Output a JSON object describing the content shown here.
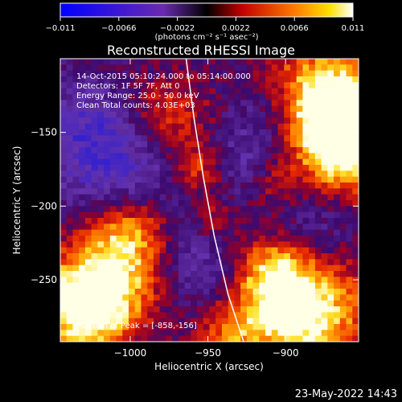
{
  "chart_data": {
    "type": "heatmap",
    "title": "Reconstructed RHESSI Image",
    "xlabel": "Heliocentric X (arcsec)",
    "ylabel": "Heliocentric Y (arcsec)",
    "xlim": [
      -1045,
      -853
    ],
    "ylim": [
      -292,
      -100
    ],
    "x_ticks": [
      -1000,
      -950,
      -900
    ],
    "y_ticks": [
      -150,
      -200,
      -250
    ],
    "x_tick_labels": [
      "−1000",
      "−950",
      "−900"
    ],
    "y_tick_labels": [
      "−150",
      "−200",
      "−250"
    ],
    "colorbar": {
      "range": [
        -0.011,
        0.011
      ],
      "ticks": [
        -0.011,
        -0.0066,
        -0.0022,
        0.0022,
        0.0066,
        0.011
      ],
      "tick_labels": [
        "−0.011",
        "−0.0066",
        "−0.0022",
        "0.0022",
        "0.0066",
        "0.011"
      ],
      "units_label": "(photons cm⁻² s⁻¹ asec⁻²)"
    },
    "info_lines": [
      "14-Oct-2015 05:10:24.000 to 05:14:00.000",
      "Detectors: 1F 5F 7F, Att 0",
      "Energy Range: 25.0 - 50.0 keV",
      "Clean    Total counts: 4.03E+03"
    ],
    "peak_label": "Position of Peak = [-858,-156]",
    "peak": [
      -858,
      -156
    ],
    "limb_curve": [
      [
        -964,
        -100
      ],
      [
        -959,
        -140
      ],
      [
        -953,
        -180
      ],
      [
        -946,
        -220
      ],
      [
        -937,
        -260
      ],
      [
        -927,
        -292
      ]
    ],
    "grid": false
  },
  "footer": {
    "timestamp": "23-May-2022 14:43"
  },
  "colors": {
    "background": "#000000",
    "text": "#ffffff",
    "limb": "#ffffff"
  }
}
